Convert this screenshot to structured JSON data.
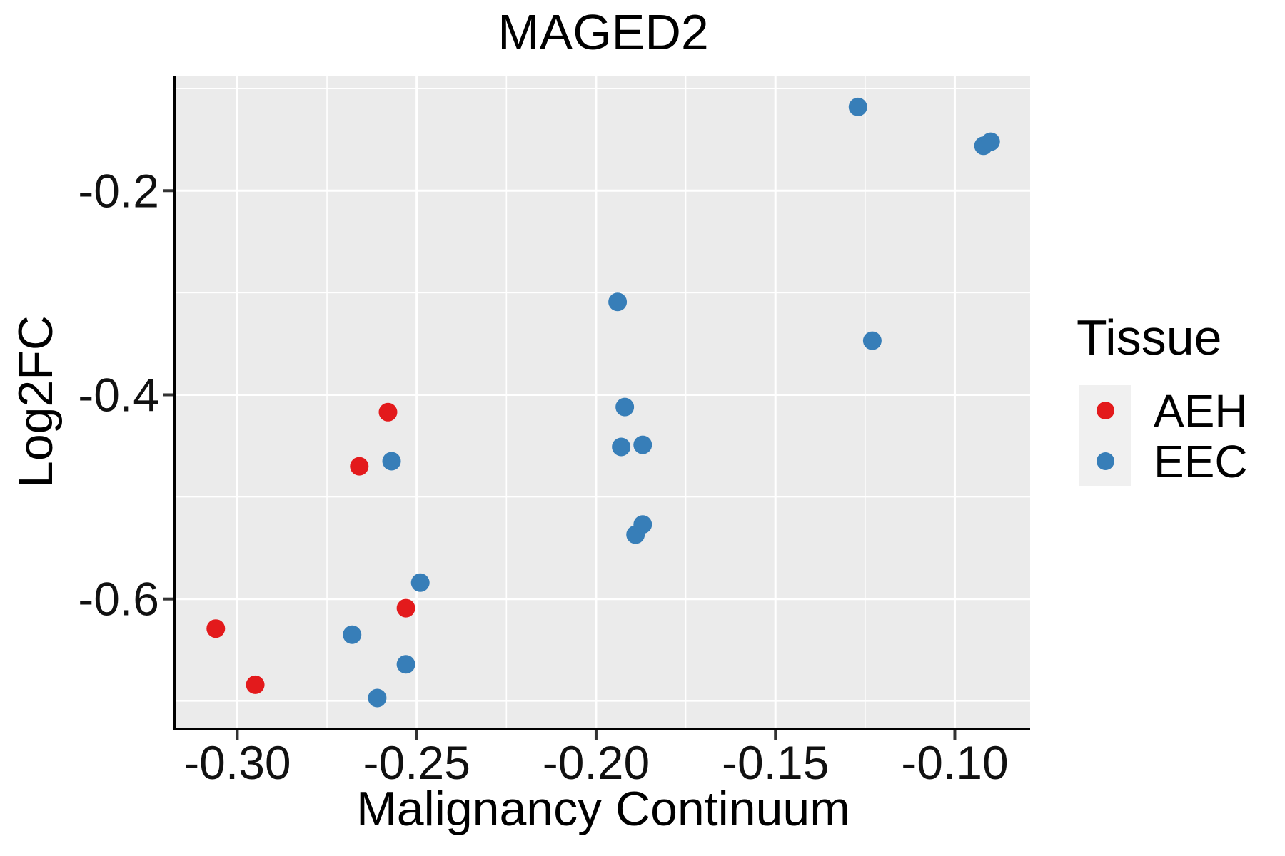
{
  "figure": {
    "title": "MAGED2",
    "xlabel": "Malignancy Continuum",
    "ylabel": "Log2FC"
  },
  "legend": {
    "title": "Tissue",
    "items": [
      {
        "label": "AEH",
        "color": "#E31A1C"
      },
      {
        "label": "EEC",
        "color": "#377EB8"
      }
    ]
  },
  "chart_data": {
    "type": "scatter",
    "title": "MAGED2",
    "xlabel": "Malignancy Continuum",
    "ylabel": "Log2FC",
    "legend_title": "Tissue",
    "legend_position": "right",
    "grid": true,
    "panel_background": "#EBEBEB",
    "gridline_color": "#FFFFFF",
    "axis_line_color": "#000000",
    "tick_mark_color": "#333333",
    "legend_key_background": "#F0F0F0",
    "xlim": [
      -0.317,
      -0.079
    ],
    "ylim": [
      -0.726,
      -0.088
    ],
    "x_ticks": {
      "values": [
        -0.3,
        -0.25,
        -0.2,
        -0.15,
        -0.1
      ],
      "labels": [
        "-0.30",
        "-0.25",
        "-0.20",
        "-0.15",
        "-0.10"
      ]
    },
    "y_ticks": {
      "values": [
        -0.2,
        -0.4,
        -0.6
      ],
      "labels": [
        "-0.2",
        "-0.4",
        "-0.6"
      ]
    },
    "x_minor_gridlines": [
      -0.275,
      -0.225,
      -0.175,
      -0.125
    ],
    "y_minor_gridlines": [
      -0.1,
      -0.3,
      -0.5,
      -0.7
    ],
    "point_radius_px": 13,
    "series": [
      {
        "name": "AEH",
        "color": "#E31A1C",
        "points": [
          [
            -0.306,
            -0.629
          ],
          [
            -0.295,
            -0.684
          ],
          [
            -0.266,
            -0.47
          ],
          [
            -0.258,
            -0.417
          ],
          [
            -0.253,
            -0.609
          ]
        ]
      },
      {
        "name": "EEC",
        "color": "#377EB8",
        "points": [
          [
            -0.268,
            -0.635
          ],
          [
            -0.261,
            -0.697
          ],
          [
            -0.257,
            -0.465
          ],
          [
            -0.253,
            -0.664
          ],
          [
            -0.249,
            -0.584
          ],
          [
            -0.194,
            -0.309
          ],
          [
            -0.193,
            -0.451
          ],
          [
            -0.192,
            -0.412
          ],
          [
            -0.189,
            -0.537
          ],
          [
            -0.187,
            -0.449
          ],
          [
            -0.187,
            -0.527
          ],
          [
            -0.127,
            -0.118
          ],
          [
            -0.123,
            -0.347
          ],
          [
            -0.092,
            -0.156
          ],
          [
            -0.09,
            -0.152
          ]
        ]
      }
    ]
  }
}
